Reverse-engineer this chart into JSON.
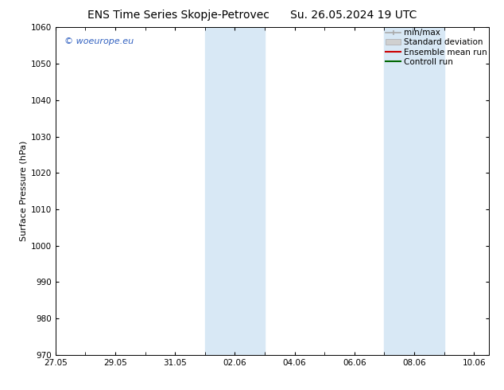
{
  "title_left": "ENS Time Series Skopje-Petrovec",
  "title_right": "Su. 26.05.2024 19 UTC",
  "ylabel": "Surface Pressure (hPa)",
  "ylim": [
    970,
    1060
  ],
  "yticks": [
    970,
    980,
    990,
    1000,
    1010,
    1020,
    1030,
    1040,
    1050,
    1060
  ],
  "xtick_labels": [
    "27.05",
    "29.05",
    "31.05",
    "02.06",
    "04.06",
    "06.06",
    "08.06",
    "10.06"
  ],
  "xtick_positions_days": [
    0,
    2,
    4,
    6,
    8,
    10,
    12,
    14
  ],
  "xlim": [
    0,
    14.5
  ],
  "shaded_regions": [
    {
      "start_day": 5.0,
      "end_day": 7.0
    },
    {
      "start_day": 11.0,
      "end_day": 13.0
    }
  ],
  "shaded_color": "#d8e8f5",
  "watermark_text": "© woeurope.eu",
  "watermark_color": "#3060c0",
  "legend_items": [
    {
      "label": "min/max",
      "color": "#aaaaaa"
    },
    {
      "label": "Standard deviation",
      "color": "#cccccc"
    },
    {
      "label": "Ensemble mean run",
      "color": "#cc0000"
    },
    {
      "label": "Controll run",
      "color": "#006600"
    }
  ],
  "background_color": "#ffffff",
  "font_size_title": 10,
  "font_size_axis": 8,
  "font_size_ticks": 7.5,
  "font_size_legend": 7.5,
  "font_size_watermark": 8
}
